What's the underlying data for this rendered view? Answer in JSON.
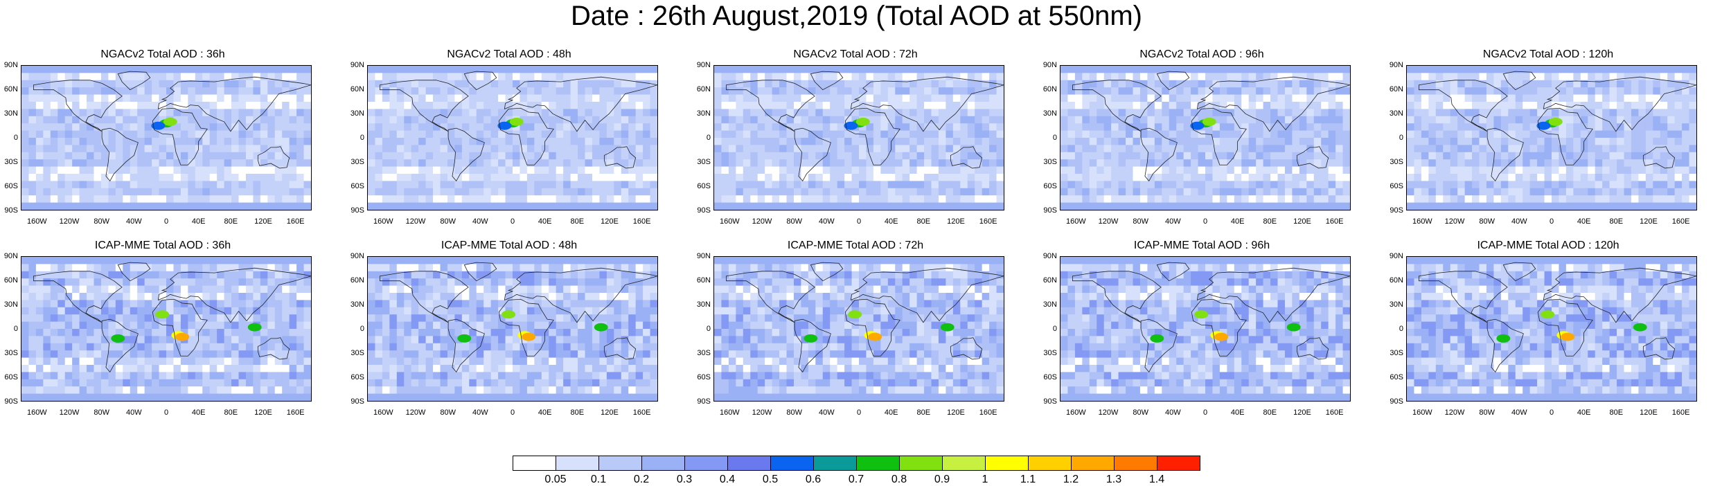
{
  "title": "Date : 26th August,2019 (Total AOD at 550nm)",
  "lat_labels": [
    "90N",
    "60N",
    "30N",
    "0",
    "30S",
    "60S",
    "90S"
  ],
  "lon_labels": [
    "160W",
    "120W",
    "80W",
    "40W",
    "0",
    "40E",
    "80E",
    "120E",
    "160E"
  ],
  "panels": [
    {
      "title": "NGACv2 Total AOD : 36h",
      "intensity": 0.35
    },
    {
      "title": "NGACv2 Total AOD : 48h",
      "intensity": 0.35
    },
    {
      "title": "NGACv2 Total AOD : 72h",
      "intensity": 0.38
    },
    {
      "title": "NGACv2 Total AOD : 96h",
      "intensity": 0.42
    },
    {
      "title": "NGACv2 Total AOD : 120h",
      "intensity": 0.4
    },
    {
      "title": "ICAP-MME Total AOD : 36h",
      "intensity": 0.55
    },
    {
      "title": "ICAP-MME Total AOD : 48h",
      "intensity": 0.55
    },
    {
      "title": "ICAP-MME Total AOD : 72h",
      "intensity": 0.58
    },
    {
      "title": "ICAP-MME Total AOD : 96h",
      "intensity": 0.6
    },
    {
      "title": "ICAP-MME Total AOD : 120h",
      "intensity": 0.6
    }
  ],
  "colorbar": {
    "colors": [
      "#ffffff",
      "#d7e1fb",
      "#b9c9f8",
      "#9bb1f5",
      "#8399f3",
      "#6a79ee",
      "#0a64f0",
      "#0a9a9a",
      "#10c010",
      "#80e010",
      "#c8f040",
      "#ffff00",
      "#ffd000",
      "#ffa800",
      "#ff7a00",
      "#ff2000"
    ],
    "labels": [
      "0.05",
      "0.1",
      "0.2",
      "0.3",
      "0.4",
      "0.5",
      "0.6",
      "0.7",
      "0.8",
      "0.9",
      "1",
      "1.1",
      "1.2",
      "1.3",
      "1.4"
    ]
  }
}
